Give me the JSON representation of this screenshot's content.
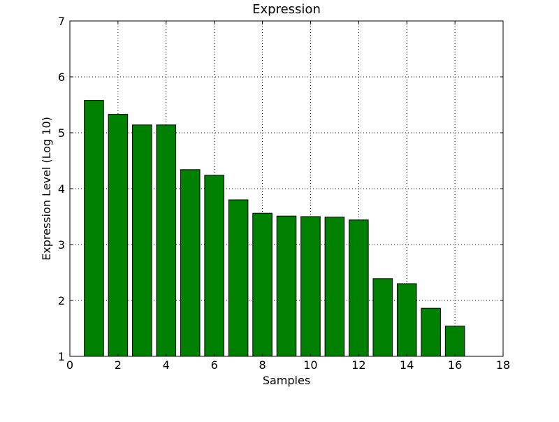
{
  "chart_data": {
    "type": "bar",
    "title": "Expression",
    "xlabel": "Samples",
    "ylabel": "Expression Level (Log 10)",
    "xlim": [
      0,
      18
    ],
    "ylim": [
      1,
      7
    ],
    "xticks": [
      0,
      2,
      4,
      6,
      8,
      10,
      12,
      14,
      16,
      18
    ],
    "yticks": [
      1,
      2,
      3,
      4,
      5,
      6,
      7
    ],
    "grid": true,
    "bar_color": "#008000",
    "edge_color": "#000000",
    "bar_width": 0.8,
    "x": [
      1,
      2,
      3,
      4,
      5,
      6,
      7,
      8,
      9,
      10,
      11,
      12,
      13,
      14,
      15,
      16
    ],
    "values": [
      5.58,
      5.33,
      5.14,
      5.14,
      4.34,
      4.24,
      3.8,
      3.56,
      3.51,
      3.5,
      3.49,
      3.44,
      2.39,
      2.3,
      1.86,
      1.54
    ]
  }
}
